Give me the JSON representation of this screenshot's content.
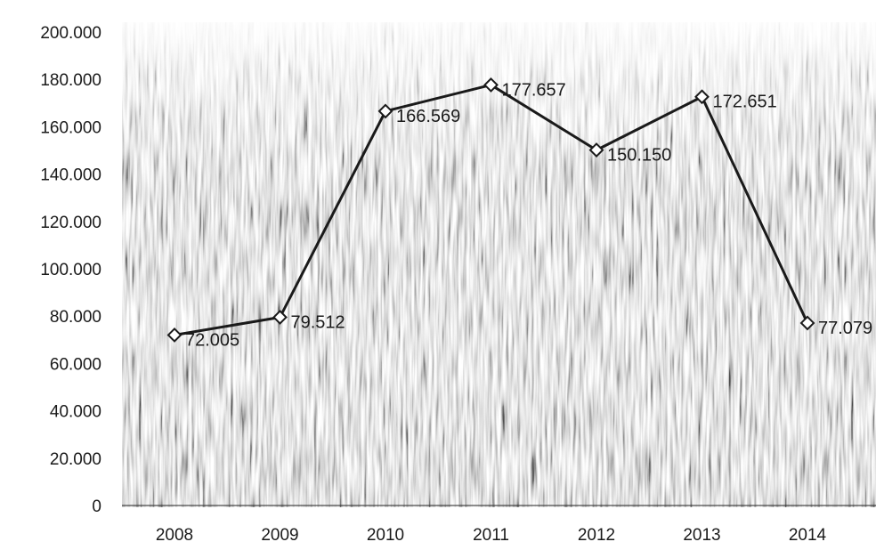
{
  "chart_data": {
    "type": "line",
    "categories": [
      "2008",
      "2009",
      "2010",
      "2011",
      "2012",
      "2013",
      "2014"
    ],
    "series": [
      {
        "values": [
          72.005,
          79.512,
          166.569,
          177.657,
          150.15,
          172.651,
          77.079
        ],
        "labels": [
          "72.005",
          "79.512",
          "166.569",
          "177.657",
          "150.150",
          "172.651",
          "77.079"
        ],
        "marker": "diamond",
        "color": "#1a1a1a"
      }
    ],
    "y_ticks": [
      "0",
      "20.000",
      "40.000",
      "60.000",
      "80.000",
      "100.000",
      "120.000",
      "140.000",
      "160.000",
      "180.000",
      "200.000"
    ],
    "ylim": [
      0,
      200
    ],
    "grid": false,
    "legend": "none",
    "background": "photo of grain field (grayscale)"
  }
}
